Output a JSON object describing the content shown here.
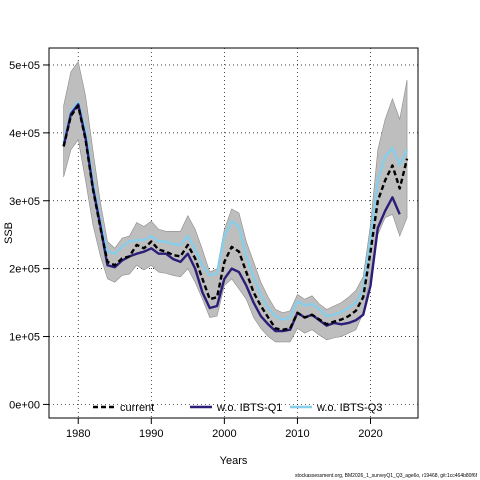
{
  "chart_data": {
    "type": "line",
    "xlabel": "Years",
    "ylabel": "SSB",
    "xlim": [
      1976,
      2026.5
    ],
    "ylim": [
      -20000,
      525000
    ],
    "x_ticks": [
      1980,
      1990,
      2000,
      2010,
      2020
    ],
    "x_tick_labels": [
      "1980",
      "1990",
      "2000",
      "2010",
      "2020"
    ],
    "y_ticks": [
      0,
      100000,
      200000,
      300000,
      400000,
      500000
    ],
    "y_tick_labels": [
      "0e+00",
      "1e+05",
      "2e+05",
      "3e+05",
      "4e+05",
      "5e+05"
    ],
    "grid": true,
    "legend_position": "bottom",
    "footnote": "stockassessment.org, BM2026_1_surveyQ1_Q3_age6o, r19468, git:1cc464b80f6f",
    "x": [
      1978,
      1979,
      1980,
      1981,
      1982,
      1983,
      1984,
      1985,
      1986,
      1987,
      1988,
      1989,
      1990,
      1991,
      1992,
      1993,
      1994,
      1995,
      1996,
      1997,
      1998,
      1999,
      2000,
      2001,
      2002,
      2003,
      2004,
      2005,
      2006,
      2007,
      2008,
      2009,
      2010,
      2011,
      2012,
      2013,
      2014,
      2015,
      2016,
      2017,
      2018,
      2019,
      2020,
      2021,
      2022,
      2023,
      2024,
      2025
    ],
    "confidence_band": {
      "color": "#bebebe",
      "lower": [
        335000,
        375000,
        390000,
        330000,
        265000,
        220000,
        185000,
        180000,
        190000,
        192000,
        205000,
        198000,
        205000,
        195000,
        193000,
        190000,
        188000,
        200000,
        180000,
        155000,
        128000,
        130000,
        175000,
        185000,
        170000,
        155000,
        128000,
        112000,
        100000,
        92000,
        92000,
        92000,
        112000,
        105000,
        110000,
        102000,
        95000,
        98000,
        100000,
        105000,
        110000,
        135000,
        190000,
        250000,
        275000,
        280000,
        248000,
        275000
      ],
      "upper": [
        440000,
        490000,
        505000,
        455000,
        375000,
        300000,
        240000,
        230000,
        245000,
        248000,
        268000,
        262000,
        270000,
        258000,
        255000,
        255000,
        255000,
        278000,
        258000,
        228000,
        195000,
        200000,
        258000,
        288000,
        282000,
        240000,
        210000,
        180000,
        158000,
        140000,
        135000,
        138000,
        162000,
        155000,
        160000,
        148000,
        140000,
        145000,
        150000,
        158000,
        168000,
        188000,
        265000,
        375000,
        420000,
        450000,
        420000,
        478000
      ]
    },
    "series": [
      {
        "name": "current",
        "color": "#000000",
        "dash": "dashed",
        "values": [
          380000,
          425000,
          440000,
          390000,
          318000,
          262000,
          210000,
          205000,
          215000,
          218000,
          235000,
          230000,
          240000,
          228000,
          225000,
          220000,
          218000,
          235000,
          215000,
          185000,
          155000,
          158000,
          210000,
          232000,
          225000,
          195000,
          165000,
          145000,
          128000,
          112000,
          110000,
          112000,
          135000,
          128000,
          132000,
          125000,
          118000,
          122000,
          125000,
          130000,
          138000,
          158000,
          225000,
          300000,
          330000,
          352000,
          318000,
          362000
        ]
      },
      {
        "name": "w.o. IBTS-Q1",
        "color": "#2d1d78",
        "dash": "solid",
        "values": [
          380000,
          428000,
          442000,
          393000,
          320000,
          265000,
          205000,
          202000,
          212000,
          218000,
          222000,
          225000,
          230000,
          222000,
          222000,
          214000,
          210000,
          222000,
          200000,
          165000,
          142000,
          145000,
          185000,
          200000,
          195000,
          175000,
          150000,
          130000,
          118000,
          108000,
          108000,
          110000,
          135000,
          128000,
          132000,
          124000,
          116000,
          120000,
          118000,
          120000,
          124000,
          132000,
          175000,
          260000,
          285000,
          305000,
          280000,
          null
        ]
      },
      {
        "name": "w.o. IBTS-Q3",
        "color": "#87ceeb",
        "dash": "solid",
        "values": [
          385000,
          432000,
          445000,
          405000,
          330000,
          272000,
          225000,
          222000,
          232000,
          240000,
          242000,
          242000,
          248000,
          240000,
          240000,
          236000,
          235000,
          248000,
          228000,
          205000,
          190000,
          193000,
          248000,
          270000,
          262000,
          218000,
          188000,
          160000,
          142000,
          130000,
          125000,
          128000,
          152000,
          146000,
          148000,
          140000,
          130000,
          132000,
          136000,
          142000,
          150000,
          170000,
          245000,
          330000,
          365000,
          378000,
          352000,
          375000
        ]
      }
    ]
  }
}
